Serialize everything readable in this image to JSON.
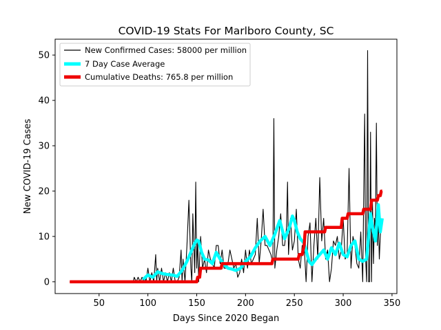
{
  "chart_data": {
    "type": "line",
    "title": "COVID-19 Stats For Marlboro County, SC",
    "xlabel": "Days Since 2020 Began",
    "ylabel": "New COVID-19 Cases",
    "xlim": [
      5,
      355
    ],
    "ylim": [
      -2.6,
      53.5
    ],
    "xticks": [
      50,
      100,
      150,
      200,
      250,
      300,
      350
    ],
    "yticks": [
      0,
      10,
      20,
      30,
      40,
      50
    ],
    "legend_position": "upper-left",
    "grid": false,
    "series": [
      {
        "name": "New Confirmed Cases: 58000 per million",
        "color": "#000000",
        "style": "thin",
        "x": [
          20,
          85,
          86,
          88,
          90,
          92,
          94,
          96,
          97,
          98,
          100,
          102,
          104,
          106,
          108,
          109,
          110,
          112,
          114,
          116,
          118,
          120,
          122,
          124,
          126,
          128,
          130,
          132,
          134,
          135,
          136,
          138,
          140,
          142,
          144,
          145,
          146,
          148,
          149,
          150,
          151,
          152,
          154,
          156,
          158,
          160,
          162,
          164,
          166,
          168,
          170,
          172,
          174,
          176,
          178,
          180,
          182,
          184,
          186,
          188,
          190,
          192,
          194,
          196,
          198,
          200,
          202,
          204,
          206,
          208,
          210,
          212,
          214,
          216,
          218,
          220,
          222,
          224,
          226,
          228,
          229,
          230,
          232,
          234,
          236,
          238,
          240,
          242,
          243,
          244,
          246,
          248,
          250,
          252,
          254,
          256,
          258,
          260,
          262,
          264,
          266,
          268,
          270,
          272,
          274,
          276,
          278,
          280,
          282,
          284,
          286,
          288,
          290,
          292,
          294,
          296,
          298,
          300,
          302,
          304,
          306,
          308,
          310,
          312,
          314,
          316,
          318,
          320,
          322,
          323,
          324,
          325,
          326,
          327,
          328,
          329,
          330,
          331,
          332,
          333,
          334,
          335,
          336,
          337,
          338,
          339
        ],
        "y": [
          0,
          0,
          1,
          0,
          1,
          0,
          1,
          0,
          1,
          0,
          3,
          0,
          2,
          0,
          6,
          0,
          3,
          0,
          3,
          0,
          2,
          0,
          2,
          0,
          3,
          0,
          0,
          1,
          7,
          0,
          5,
          0,
          8,
          18,
          3,
          0,
          15,
          2,
          22,
          3,
          9,
          0,
          10,
          3,
          5,
          2,
          7,
          5,
          4,
          3,
          8,
          8,
          4,
          7,
          3,
          3,
          4,
          7,
          5,
          3,
          4,
          1,
          2,
          5,
          2,
          7,
          3,
          7,
          4,
          5,
          6,
          14,
          4,
          9,
          16,
          8,
          8,
          7,
          6,
          4,
          36,
          3,
          7,
          10,
          15,
          8,
          8,
          12,
          22,
          6,
          14,
          7,
          9,
          16,
          5,
          3,
          8,
          8,
          0,
          10,
          13,
          0,
          8,
          14,
          5,
          23,
          9,
          14,
          5,
          7,
          0,
          3,
          9,
          8,
          10,
          5,
          7,
          14,
          5,
          6,
          25,
          3,
          10,
          8,
          4,
          3,
          11,
          0,
          37,
          5,
          0,
          51,
          0,
          0,
          33,
          0,
          18,
          4,
          14,
          12,
          35,
          8,
          14,
          5,
          10,
          14
        ],
        "x_ref": "see-script"
      },
      {
        "name": "7 Day Case Average",
        "color": "#00ffff",
        "style": "thick",
        "x": [
          95,
          100,
          105,
          110,
          115,
          120,
          125,
          130,
          135,
          140,
          145,
          148,
          150,
          152,
          155,
          158,
          162,
          166,
          170,
          174,
          178,
          182,
          186,
          190,
          195,
          200,
          205,
          210,
          215,
          220,
          225,
          230,
          235,
          240,
          245,
          248,
          250,
          253,
          256,
          260,
          265,
          268,
          272,
          276,
          280,
          284,
          288,
          292,
          296,
          300,
          304,
          308,
          312,
          316,
          320,
          324,
          328,
          330,
          333,
          336,
          338,
          340
        ],
        "y": [
          0.5,
          1.5,
          1.0,
          2.2,
          1.8,
          1.6,
          1.5,
          1.2,
          2.5,
          4.5,
          7.0,
          8.5,
          9.2,
          9.0,
          6.5,
          5.0,
          4.8,
          4.0,
          6.5,
          5.0,
          3.8,
          3.0,
          2.8,
          2.5,
          3.0,
          4.5,
          5.5,
          7.5,
          9.0,
          10.0,
          8.0,
          10.5,
          13.5,
          9.5,
          12.0,
          14.5,
          13.5,
          11.0,
          9.5,
          8.5,
          4.5,
          3.8,
          5.0,
          6.0,
          7.0,
          5.0,
          7.5,
          6.0,
          8.5,
          6.0,
          5.5,
          8.0,
          9.0,
          5.0,
          4.5,
          5.0,
          15.0,
          12.0,
          9.0,
          17.0,
          11.0,
          14.0
        ]
      },
      {
        "name": "Cumulative Deaths: 765.8 per million",
        "color": "#ee0000",
        "style": "thick-step",
        "x": [
          20,
          150,
          151,
          153,
          154,
          172,
          173,
          175,
          176,
          227,
          228,
          232,
          233,
          254,
          255,
          258,
          259,
          260,
          261,
          281,
          282,
          298,
          299,
          304,
          305,
          320,
          321,
          328,
          329,
          335,
          336,
          338,
          339,
          340
        ],
        "y": [
          0,
          0,
          1,
          1,
          3,
          3,
          3,
          3,
          4,
          4,
          5,
          5,
          5,
          5,
          6,
          6,
          7,
          8,
          11,
          11,
          12,
          12,
          14,
          14,
          15,
          15,
          16,
          16,
          18,
          18,
          19,
          19,
          20,
          20
        ]
      }
    ]
  }
}
